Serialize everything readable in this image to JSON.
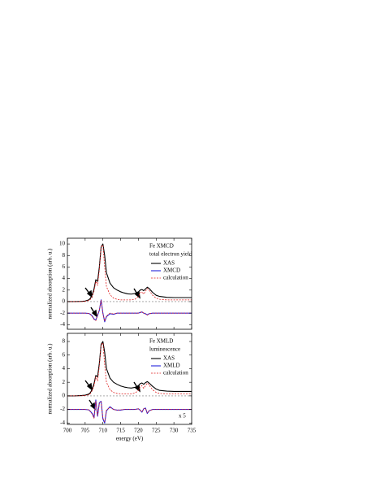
{
  "chart_data": [
    {
      "type": "line",
      "annotations": [
        "Fe XMCD",
        "total electron yield"
      ],
      "ylabel": "normalized absorption (arb. u.)",
      "x": [
        700,
        702,
        704,
        705,
        706,
        706.5,
        707,
        707.5,
        708,
        708.5,
        709,
        709.5,
        710,
        710.5,
        711,
        712,
        713,
        714,
        715,
        716,
        717,
        718,
        719,
        720,
        720.5,
        721,
        721.5,
        722,
        722.5,
        723,
        724,
        725,
        726,
        728,
        730,
        732,
        735
      ],
      "series": [
        {
          "name": "XAS",
          "color": "#000000",
          "dash": false,
          "values": [
            0,
            0,
            0.05,
            0.1,
            0.3,
            0.6,
            1.2,
            2.2,
            3.8,
            3.5,
            6,
            9.5,
            10,
            8,
            5,
            3.2,
            2.4,
            2,
            1.7,
            1.5,
            1.35,
            1.3,
            1.4,
            1.7,
            2,
            2.1,
            1.9,
            2.2,
            2.5,
            2.3,
            1.6,
            1.1,
            0.9,
            0.75,
            0.7,
            0.7,
            0.7
          ]
        },
        {
          "name": "XMCD",
          "color": "#2222dd",
          "dash": false,
          "values": [
            -2,
            -2,
            -2,
            -2,
            -2.05,
            -2.2,
            -2.5,
            -3,
            -3.2,
            -2.4,
            -1.5,
            0.3,
            -2,
            -3.5,
            -2.6,
            -2.1,
            -2.2,
            -2,
            -2,
            -2,
            -2,
            -2,
            -2,
            -2,
            -1.9,
            -1.8,
            -2,
            -2.1,
            -2.3,
            -2.1,
            -2,
            -2,
            -2,
            -2,
            -2,
            -2,
            -2
          ]
        },
        {
          "name": "calculation",
          "color": "#e02020",
          "dash": true,
          "values": [
            0,
            0,
            0,
            0.05,
            0.2,
            0.4,
            0.9,
            1.8,
            3.5,
            2.8,
            5.5,
            9.5,
            9.8,
            6,
            2.6,
            1.2,
            0.6,
            0.4,
            0.3,
            0.3,
            0.3,
            0.3,
            0.4,
            0.9,
            1.5,
            1.7,
            1.3,
            1.8,
            2.3,
            2,
            1.1,
            0.6,
            0.4,
            0.3,
            0.3,
            0.3,
            0.3
          ]
        },
        {
          "name": "calculation",
          "color": "#e02020",
          "dash": true,
          "in_legend": false,
          "values": [
            -2,
            -2,
            -2,
            -2,
            -2.05,
            -2.25,
            -2.6,
            -3.1,
            -3.3,
            -2.3,
            -1.4,
            0.2,
            -2.1,
            -3.4,
            -2.5,
            -2,
            -2.15,
            -2,
            -2,
            -2,
            -2,
            -2,
            -2,
            -2,
            -1.85,
            -1.75,
            -2,
            -2.15,
            -2.35,
            -2.1,
            -2,
            -2,
            -2,
            -2,
            -2,
            -2,
            -2
          ]
        }
      ],
      "reference_line": 0,
      "xlim": [
        700,
        735
      ],
      "xticks": [
        700,
        705,
        710,
        715,
        720,
        725,
        730,
        735
      ],
      "ylim": [
        -4.8,
        11
      ],
      "yticks": [
        -4,
        -2,
        0,
        2,
        4,
        6,
        8,
        10
      ]
    },
    {
      "type": "line",
      "annotations": [
        "Fe XMLD",
        "luminescence"
      ],
      "scale_note": "x 5",
      "ylabel": "normalized absorption (arb. u.)",
      "xlabel": "energy (eV)",
      "x": [
        700,
        702,
        704,
        705,
        706,
        706.5,
        707,
        707.5,
        708,
        708.5,
        709,
        709.5,
        710,
        710.5,
        711,
        712,
        713,
        714,
        715,
        716,
        717,
        718,
        719,
        720,
        720.5,
        721,
        721.5,
        722,
        722.5,
        723,
        724,
        725,
        726,
        728,
        730,
        732,
        735
      ],
      "series": [
        {
          "name": "XAS",
          "color": "#000000",
          "dash": false,
          "values": [
            0,
            0,
            0.05,
            0.1,
            0.25,
            0.5,
            1,
            1.8,
            3,
            2.8,
            4.8,
            7.6,
            8,
            6.4,
            4,
            2.6,
            2,
            1.7,
            1.45,
            1.3,
            1.2,
            1.15,
            1.25,
            1.5,
            1.8,
            1.9,
            1.7,
            1.95,
            2.1,
            1.9,
            1.4,
            1,
            0.8,
            0.7,
            0.65,
            0.65,
            0.65
          ]
        },
        {
          "name": "XMLD",
          "color": "#2222dd",
          "dash": false,
          "values": [
            -2,
            -2,
            -2,
            -2,
            -2.05,
            -2.3,
            -2.6,
            -3.2,
            -0.6,
            -3,
            -1,
            -0.8,
            -3.4,
            -4,
            -2.2,
            -1.6,
            -2,
            -2.1,
            -2.1,
            -2,
            -2,
            -2,
            -2,
            -1.9,
            -2.1,
            -2.4,
            -1.9,
            -1.8,
            -2.6,
            -2.2,
            -2,
            -2,
            -2,
            -2,
            -2,
            -2,
            -2
          ]
        },
        {
          "name": "calculation",
          "color": "#e02020",
          "dash": true,
          "values": [
            0,
            0,
            0,
            0.05,
            0.15,
            0.35,
            0.8,
            1.5,
            2.8,
            2.2,
            4.4,
            7.5,
            7.8,
            4.6,
            2,
            0.9,
            0.5,
            0.35,
            0.3,
            0.3,
            0.3,
            0.3,
            0.4,
            0.8,
            1.3,
            1.5,
            1.1,
            1.5,
            1.9,
            1.6,
            0.9,
            0.5,
            0.35,
            0.3,
            0.3,
            0.3,
            0.3
          ]
        },
        {
          "name": "calculation",
          "color": "#e02020",
          "dash": true,
          "in_legend": false,
          "values": [
            -2,
            -2,
            -2,
            -2,
            -2.05,
            -2.35,
            -2.7,
            -3.3,
            -0.8,
            -2.9,
            -1.1,
            -0.9,
            -3.3,
            -3.8,
            -2.1,
            -1.7,
            -2,
            -2.1,
            -2.05,
            -2,
            -2,
            -2,
            -2,
            -1.9,
            -2.15,
            -2.35,
            -1.9,
            -1.85,
            -2.5,
            -2.2,
            -2,
            -2,
            -2,
            -2,
            -2,
            -2,
            -2
          ]
        }
      ],
      "reference_line": 0,
      "xlim": [
        700,
        735
      ],
      "xticks": [
        700,
        705,
        710,
        715,
        720,
        725,
        730,
        735
      ],
      "ylim": [
        -4.2,
        9.2
      ],
      "yticks": [
        -4,
        -2,
        0,
        2,
        4,
        6,
        8
      ]
    }
  ]
}
